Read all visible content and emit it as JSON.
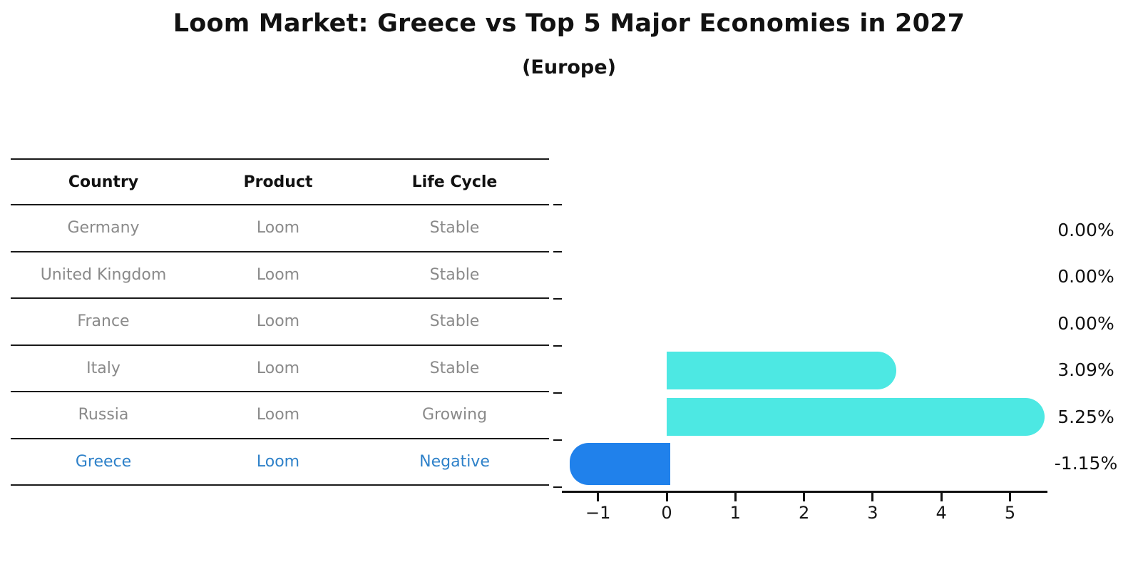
{
  "title": "Loom Market: Greece vs Top 5 Major Economies in 2027",
  "subtitle": "(Europe)",
  "table": {
    "headers": [
      "Country",
      "Product",
      "Life Cycle"
    ],
    "rows": [
      {
        "country": "Germany",
        "product": "Loom",
        "life_cycle": "Stable",
        "highlight": false
      },
      {
        "country": "United Kingdom",
        "product": "Loom",
        "life_cycle": "Stable",
        "highlight": false
      },
      {
        "country": "France",
        "product": "Loom",
        "life_cycle": "Stable",
        "highlight": false
      },
      {
        "country": "Italy",
        "product": "Loom",
        "life_cycle": "Stable",
        "highlight": false
      },
      {
        "country": "Russia",
        "product": "Loom",
        "life_cycle": "Growing",
        "highlight": false
      },
      {
        "country": "Greece",
        "product": "Loom",
        "life_cycle": "Negative",
        "highlight": true
      }
    ]
  },
  "chart_data": {
    "type": "bar",
    "orientation": "horizontal",
    "title": "Loom Market: Greece vs Top 5 Major Economies in 2027",
    "subtitle": "(Europe)",
    "categories": [
      "Germany",
      "United Kingdom",
      "France",
      "Italy",
      "Russia",
      "Greece"
    ],
    "values": [
      0.0,
      0.0,
      0.0,
      3.09,
      5.25,
      -1.15
    ],
    "value_labels": [
      "0.00%",
      "0.00%",
      "0.00%",
      "3.09%",
      "5.25%",
      "-1.15%"
    ],
    "xlabel": "",
    "ylabel": "",
    "xlim": [
      -1.53,
      5.53
    ],
    "xticks": [
      -1,
      0,
      1,
      2,
      3,
      4,
      5
    ],
    "xtick_labels": [
      "−1",
      "0",
      "1",
      "2",
      "3",
      "4",
      "5"
    ],
    "grid": false,
    "legend": false,
    "highlight_category": "Greece"
  },
  "colors": {
    "positive_bar": "#4de8e3",
    "negative_bar": "#2081eb",
    "highlight_text": "#2e81c9",
    "table_text": "#8a8a8a",
    "heading_text": "#121212",
    "axis": "#111111"
  }
}
